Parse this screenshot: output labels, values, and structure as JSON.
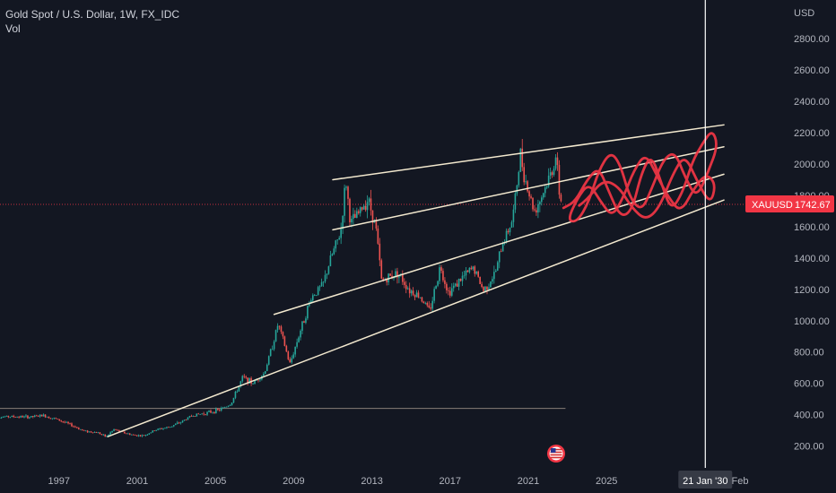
{
  "legend": {
    "symbol_title": "Gold Spot / U.S. Dollar, 1W, FX_IDC",
    "volume_label": "Vol"
  },
  "colors": {
    "background": "#131722",
    "axis_text": "#b2b5be",
    "up_candle": "#26a69a",
    "down_candle": "#ef5350",
    "trendline": "#f3e9cf",
    "drawing_red": "#f23645",
    "crosshair": "#ffffff",
    "price_badge": "#f23645"
  },
  "chart_data": {
    "type": "candlestick",
    "currency_label": "USD",
    "y_ticks": [
      200,
      400,
      600,
      800,
      1000,
      1200,
      1400,
      1600,
      1800,
      2000,
      2200,
      2400,
      2600,
      2800
    ],
    "y_tick_labels": [
      "200.00",
      "400.00",
      "600.00",
      "800.00",
      "1000.00",
      "1200.00",
      "1400.00",
      "1600.00",
      "1800.00",
      "2000.00",
      "2200.00",
      "2400.00",
      "2600.00",
      "2800.00"
    ],
    "ylim": [
      90,
      3000
    ],
    "x_tick_labels": [
      "1997",
      "2001",
      "2005",
      "2009",
      "2013",
      "2017",
      "2021",
      "2025"
    ],
    "x_tick_years": [
      1997,
      2001,
      2005,
      2009,
      2013,
      2017,
      2021,
      2025
    ],
    "x_label_extra": "Feb",
    "xlim_years": [
      1993.6,
      2034.0
    ],
    "last_price": {
      "symbol": "XAUUSD",
      "value": "1742.67",
      "price": 1742.67
    },
    "crosshair": {
      "label": "21 Jan '30",
      "year": 2030.05
    },
    "price_path": [
      [
        1993.6,
        385
      ],
      [
        1994.5,
        388
      ],
      [
        1995.5,
        385
      ],
      [
        1996.2,
        395
      ],
      [
        1996.9,
        370
      ],
      [
        1997.5,
        340
      ],
      [
        1998.3,
        295
      ],
      [
        1999.0,
        285
      ],
      [
        1999.4,
        258
      ],
      [
        1999.8,
        305
      ],
      [
        2000.3,
        285
      ],
      [
        2000.8,
        270
      ],
      [
        2001.3,
        265
      ],
      [
        2002.0,
        305
      ],
      [
        2002.6,
        320
      ],
      [
        2003.2,
        350
      ],
      [
        2003.8,
        395
      ],
      [
        2004.5,
        410
      ],
      [
        2005.2,
        430
      ],
      [
        2005.8,
        470
      ],
      [
        2006.4,
        640
      ],
      [
        2006.9,
        600
      ],
      [
        2007.5,
        665
      ],
      [
        2008.0,
        880
      ],
      [
        2008.2,
        980
      ],
      [
        2008.5,
        860
      ],
      [
        2008.8,
        720
      ],
      [
        2009.3,
        920
      ],
      [
        2009.9,
        1150
      ],
      [
        2010.5,
        1230
      ],
      [
        2010.9,
        1400
      ],
      [
        2011.4,
        1560
      ],
      [
        2011.67,
        1900
      ],
      [
        2011.9,
        1620
      ],
      [
        2012.3,
        1680
      ],
      [
        2012.8,
        1780
      ],
      [
        2013.2,
        1600
      ],
      [
        2013.5,
        1250
      ],
      [
        2013.9,
        1280
      ],
      [
        2014.3,
        1310
      ],
      [
        2014.9,
        1200
      ],
      [
        2015.5,
        1150
      ],
      [
        2015.95,
        1060
      ],
      [
        2016.5,
        1350
      ],
      [
        2016.9,
        1180
      ],
      [
        2017.6,
        1270
      ],
      [
        2018.2,
        1340
      ],
      [
        2018.7,
        1190
      ],
      [
        2019.3,
        1300
      ],
      [
        2019.7,
        1500
      ],
      [
        2020.2,
        1650
      ],
      [
        2020.6,
        2060
      ],
      [
        2020.9,
        1870
      ],
      [
        2021.3,
        1700
      ],
      [
        2021.7,
        1800
      ],
      [
        2022.2,
        1950
      ],
      [
        2022.4,
        2050
      ],
      [
        2022.6,
        1800
      ],
      [
        2022.72,
        1742
      ]
    ],
    "annotations": {
      "channel_lines": [
        {
          "from": [
            1999.5,
            260
          ],
          "to": [
            2031.0,
            1770
          ]
        },
        {
          "from": [
            2008.0,
            1040
          ],
          "to": [
            2031.0,
            1935
          ]
        },
        {
          "from": [
            2011.0,
            1580
          ],
          "to": [
            2031.0,
            2110
          ]
        },
        {
          "from": [
            2011.0,
            1900
          ],
          "to": [
            2031.0,
            2250
          ]
        }
      ],
      "horizontal_line": {
        "price": 440,
        "from": 1993.6,
        "to": 2022.9
      }
    }
  }
}
